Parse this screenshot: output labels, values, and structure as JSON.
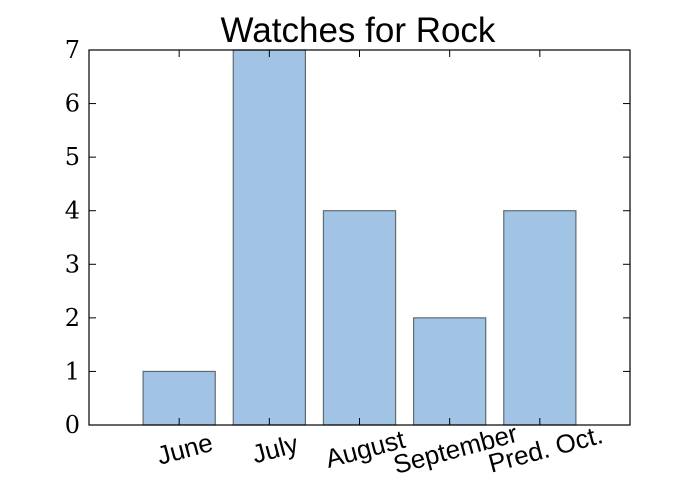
{
  "chart_data": {
    "type": "bar",
    "title": "Watches for Rock",
    "xlabel": "",
    "ylabel": "",
    "categories": [
      "June",
      "July",
      "August",
      "September",
      "Pred. Oct."
    ],
    "values": [
      1,
      7,
      4,
      2,
      4
    ],
    "ylim": [
      0,
      7
    ],
    "yticks": [
      "0",
      "1",
      "2",
      "3",
      "4",
      "5",
      "6",
      "7"
    ],
    "grid": false,
    "bar_color": "#a1c3e4",
    "bar_edge_color": "#5f6b73"
  }
}
